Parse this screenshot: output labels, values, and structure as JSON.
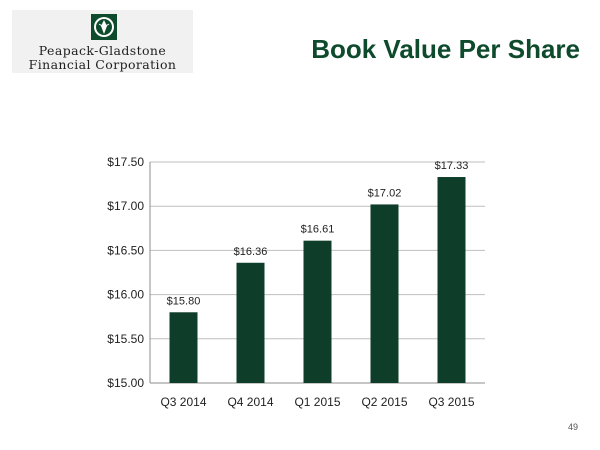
{
  "header": {
    "logo_line1": "Peapack-Gladstone",
    "logo_line2": "Financial Corporation",
    "logo_emblem_icon": "bank-emblem-icon",
    "title": "Book Value Per Share"
  },
  "colors": {
    "bar": "#0e3d29",
    "title": "#0e4a2c",
    "gridline": "#bfbfbf"
  },
  "chart_data": {
    "type": "bar",
    "title": "Book Value Per Share",
    "xlabel": "",
    "ylabel": "",
    "categories": [
      "Q3 2014",
      "Q4 2014",
      "Q1 2015",
      "Q2 2015",
      "Q3 2015"
    ],
    "values": [
      15.8,
      16.36,
      16.61,
      17.02,
      17.33
    ],
    "data_labels": [
      "$15.80",
      "$16.36",
      "$16.61",
      "$17.02",
      "$17.33"
    ],
    "ylim": [
      15.0,
      17.5
    ],
    "yticks": [
      15.0,
      15.5,
      16.0,
      16.5,
      17.0,
      17.5
    ],
    "ytick_labels": [
      "$15.00",
      "$15.50",
      "$16.00",
      "$16.50",
      "$17.00",
      "$17.50"
    ],
    "grid": true,
    "legend": "none"
  },
  "footer": {
    "page_number": "49"
  }
}
